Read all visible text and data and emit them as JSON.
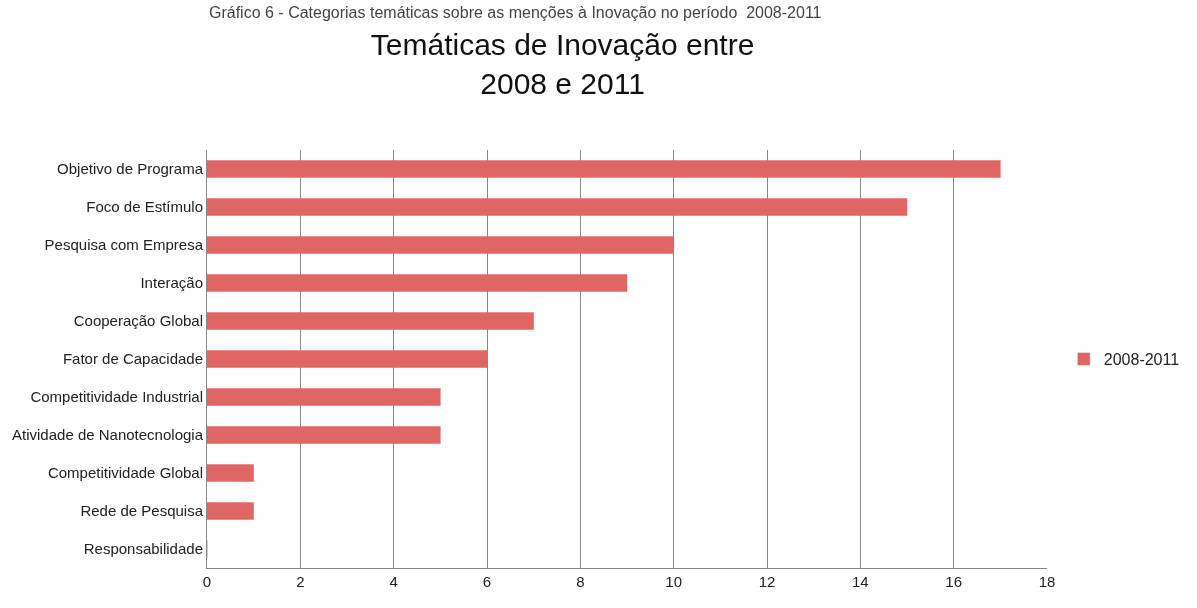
{
  "chart_data": {
    "type": "bar",
    "orientation": "horizontal",
    "title": "Temáticas de Inovação entre\n2008 e 2011",
    "annotations": [
      "Gráfico 6 - Categorias temáticas sobre as menções à Inovação no período  2008-2011"
    ],
    "categories": [
      "Objetivo de Programa",
      "Foco de Estímulo",
      "Pesquisa com Empresa",
      "Interação",
      "Cooperação Global",
      "Fator de Capacidade",
      "Competitividade Industrial",
      "Atividade de Nanotecnologia",
      "Competitividade Global",
      "Rede de Pesquisa",
      "Responsabilidade"
    ],
    "series": [
      {
        "name": "2008-2011",
        "color": "#e06666",
        "values": [
          17,
          15,
          10,
          9,
          7,
          6,
          5,
          5,
          1,
          1,
          0
        ]
      }
    ],
    "xlim": [
      0,
      18
    ],
    "xticks": [
      0,
      2,
      4,
      6,
      8,
      10,
      12,
      14,
      16,
      18
    ],
    "grid": "x",
    "legend": "right"
  }
}
